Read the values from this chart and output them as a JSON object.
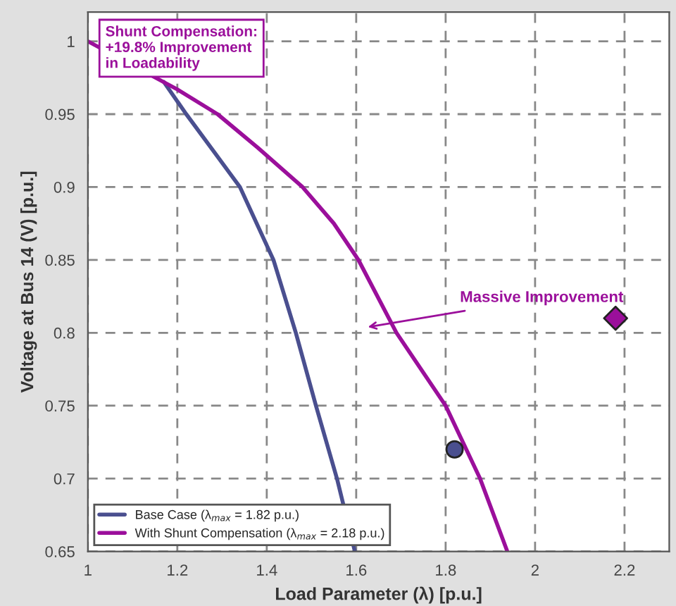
{
  "chart_data": {
    "type": "line",
    "xlabel": "Load Parameter (λ) [p.u.]",
    "ylabel": "Voltage at Bus 14 (V) [p.u.]",
    "xlim": [
      1,
      2.3
    ],
    "xticks": [
      1,
      1.2,
      1.4,
      1.6,
      1.8,
      2,
      2.2
    ],
    "ylim": [
      0.65,
      1.02
    ],
    "yticks": [
      0.65,
      0.7,
      0.75,
      0.8,
      0.85,
      0.9,
      0.95,
      1
    ],
    "grid": true,
    "legend": "bottom left",
    "line_style": "solid",
    "series": [
      {
        "name": "Base Case (λ$_{max}$ = 1.82 p.u.)",
        "color": "#4a4f8f",
        "x": [
          1.17,
          1.22,
          1.28,
          1.34,
          1.415,
          1.465,
          1.51,
          1.557,
          1.597
        ],
        "values": [
          0.972,
          0.95,
          0.925,
          0.9,
          0.85,
          0.8,
          0.75,
          0.7,
          0.65
        ]
      },
      {
        "name": "With Shunt Compensation (λ$_{max}$ = 2.18 p.u.)",
        "color": "#9b0f9b",
        "x": [
          1,
          1.2,
          1.29,
          1.38,
          1.48,
          1.55,
          1.605,
          1.69,
          1.8,
          1.877,
          1.938
        ],
        "values": [
          1,
          0.967,
          0.95,
          0.927,
          0.9,
          0.875,
          0.85,
          0.8,
          0.75,
          0.7,
          0.65
        ]
      },
      {
        "type": "scatter",
        "marker": "circle",
        "color": "#4a4f8f",
        "x": [
          1.82
        ],
        "values": [
          0.72
        ]
      },
      {
        "type": "scatter",
        "marker": "diamond",
        "color": "#9b0f9b",
        "x": [
          2.18
        ],
        "values": [
          0.81
        ]
      }
    ],
    "annotations": [
      {
        "text": "Shunt Compensation:\n+19.8% Improvement\nin Loadability"
      },
      "Massive Improvement"
    ]
  }
}
